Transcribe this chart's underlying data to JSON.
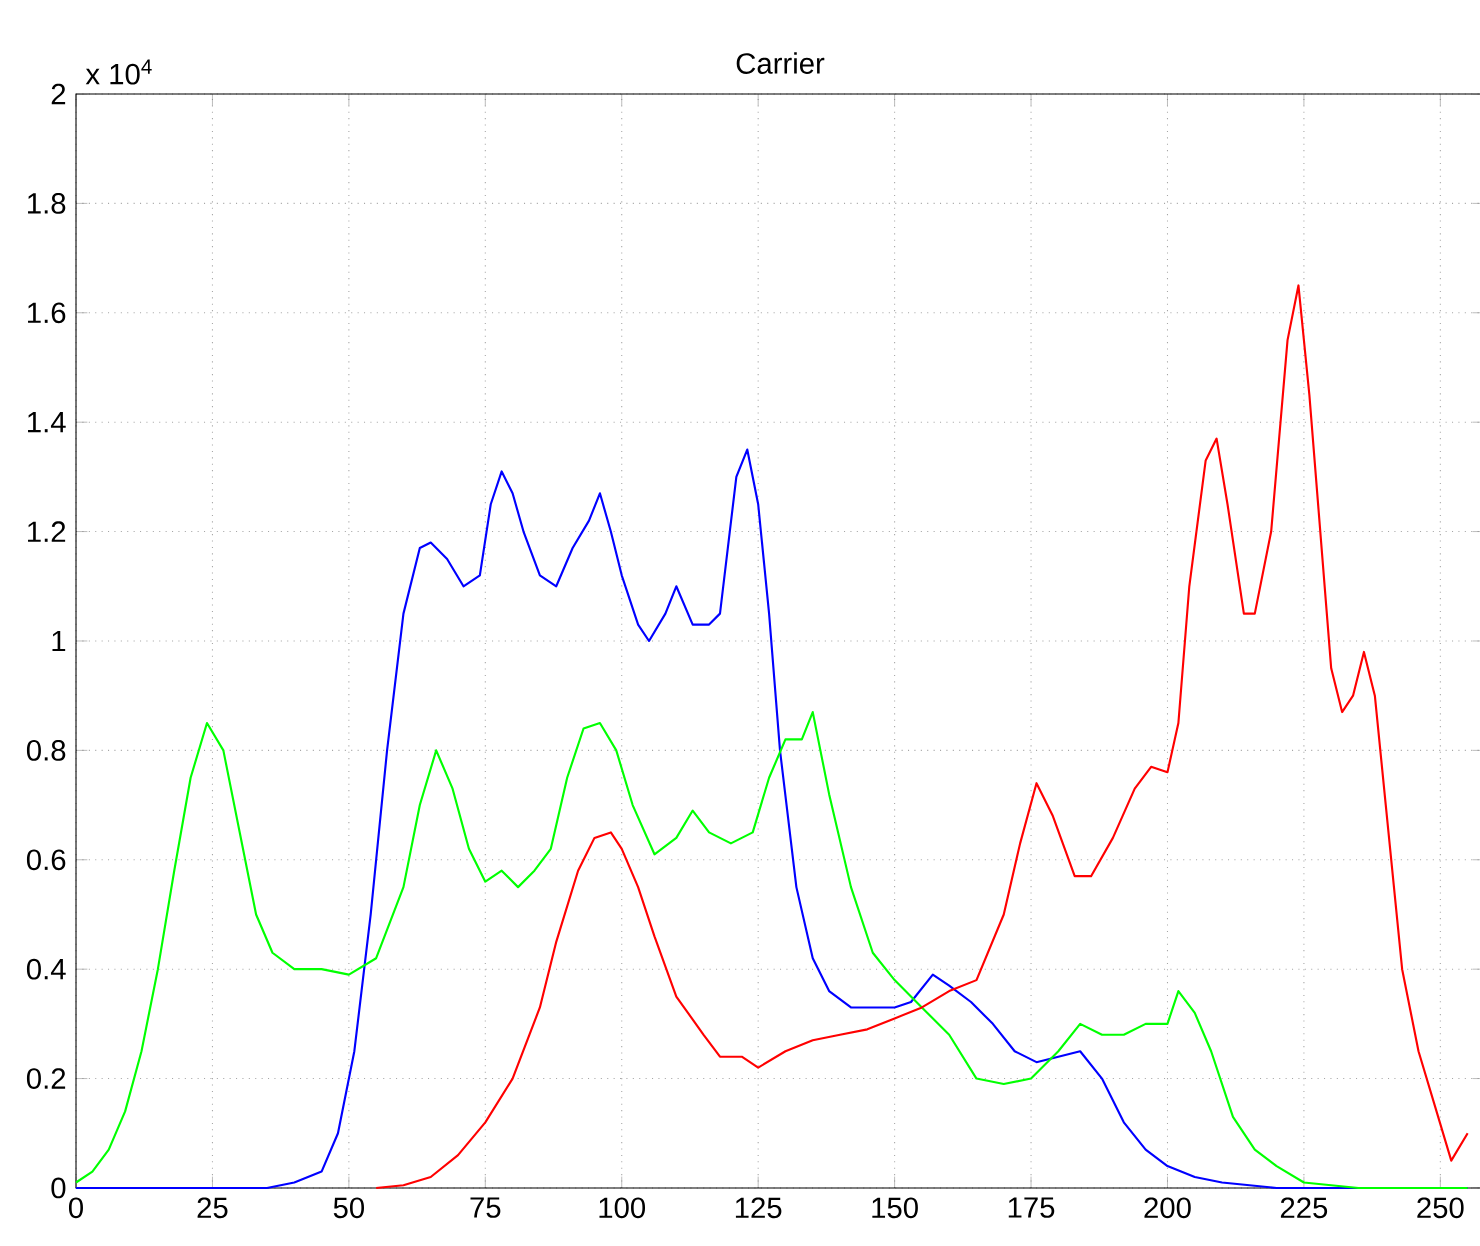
{
  "chart_data": {
    "type": "line",
    "title": "Carrier",
    "annotations": [
      "x 10$^{4}$"
    ],
    "xlim": [
      0,
      258
    ],
    "ylim": [
      0,
      2
    ],
    "xticks": [
      0,
      25,
      50,
      75,
      100,
      125,
      150,
      175,
      200,
      225,
      250
    ],
    "yticks": [
      0,
      0.2,
      0.4,
      0.6,
      0.8,
      1,
      1.2,
      1.4,
      1.6,
      1.8,
      2
    ],
    "grid": true,
    "series": [
      {
        "color": "#0000ff",
        "x": [
          0,
          20,
          35,
          40,
          45,
          48,
          51,
          54,
          57,
          60,
          63,
          65,
          68,
          71,
          74,
          76,
          78,
          80,
          82,
          85,
          88,
          91,
          94,
          96,
          98,
          100,
          103,
          105,
          108,
          110,
          113,
          116,
          118,
          121,
          123,
          125,
          127,
          129,
          132,
          135,
          138,
          142,
          146,
          150,
          153,
          157,
          160,
          164,
          168,
          172,
          176,
          180,
          184,
          188,
          192,
          196,
          200,
          205,
          210,
          220,
          255
        ],
        "values": [
          0,
          0,
          0,
          0.01,
          0.03,
          0.1,
          0.25,
          0.5,
          0.8,
          1.05,
          1.17,
          1.18,
          1.15,
          1.1,
          1.12,
          1.25,
          1.31,
          1.27,
          1.2,
          1.12,
          1.1,
          1.17,
          1.22,
          1.27,
          1.2,
          1.12,
          1.03,
          1.0,
          1.05,
          1.1,
          1.03,
          1.03,
          1.05,
          1.3,
          1.35,
          1.25,
          1.05,
          0.8,
          0.55,
          0.42,
          0.36,
          0.33,
          0.33,
          0.33,
          0.34,
          0.39,
          0.37,
          0.34,
          0.3,
          0.25,
          0.23,
          0.24,
          0.25,
          0.2,
          0.12,
          0.07,
          0.04,
          0.02,
          0.01,
          0,
          0
        ]
      },
      {
        "color": "#00ff00",
        "x": [
          0,
          3,
          6,
          9,
          12,
          15,
          18,
          21,
          24,
          27,
          30,
          33,
          36,
          40,
          45,
          50,
          55,
          60,
          63,
          66,
          69,
          72,
          75,
          78,
          81,
          84,
          87,
          90,
          93,
          96,
          99,
          102,
          106,
          110,
          113,
          116,
          120,
          124,
          127,
          130,
          133,
          135,
          138,
          142,
          146,
          150,
          155,
          160,
          165,
          170,
          175,
          180,
          184,
          188,
          192,
          196,
          200,
          202,
          205,
          208,
          212,
          216,
          220,
          225,
          235,
          255
        ],
        "values": [
          0.01,
          0.03,
          0.07,
          0.14,
          0.25,
          0.4,
          0.58,
          0.75,
          0.85,
          0.8,
          0.65,
          0.5,
          0.43,
          0.4,
          0.4,
          0.39,
          0.42,
          0.55,
          0.7,
          0.8,
          0.73,
          0.62,
          0.56,
          0.58,
          0.55,
          0.58,
          0.62,
          0.75,
          0.84,
          0.85,
          0.8,
          0.7,
          0.61,
          0.64,
          0.69,
          0.65,
          0.63,
          0.65,
          0.75,
          0.82,
          0.82,
          0.87,
          0.72,
          0.55,
          0.43,
          0.38,
          0.33,
          0.28,
          0.2,
          0.19,
          0.2,
          0.25,
          0.3,
          0.28,
          0.28,
          0.3,
          0.3,
          0.36,
          0.32,
          0.25,
          0.13,
          0.07,
          0.04,
          0.01,
          0,
          0
        ]
      },
      {
        "color": "#ff0000",
        "x": [
          55,
          60,
          65,
          70,
          75,
          80,
          85,
          88,
          92,
          95,
          98,
          100,
          103,
          106,
          110,
          115,
          118,
          122,
          125,
          130,
          135,
          140,
          145,
          150,
          155,
          160,
          165,
          170,
          173,
          176,
          179,
          183,
          186,
          190,
          194,
          197,
          200,
          202,
          204,
          207,
          209,
          211,
          214,
          216,
          219,
          222,
          224,
          226,
          228,
          230,
          232,
          234,
          236,
          238,
          240,
          243,
          246,
          249,
          252,
          255
        ],
        "values": [
          0,
          0.005,
          0.02,
          0.06,
          0.12,
          0.2,
          0.33,
          0.45,
          0.58,
          0.64,
          0.65,
          0.62,
          0.55,
          0.46,
          0.35,
          0.28,
          0.24,
          0.24,
          0.22,
          0.25,
          0.27,
          0.28,
          0.29,
          0.31,
          0.33,
          0.36,
          0.38,
          0.5,
          0.63,
          0.74,
          0.68,
          0.57,
          0.57,
          0.64,
          0.73,
          0.77,
          0.76,
          0.85,
          1.1,
          1.33,
          1.37,
          1.25,
          1.05,
          1.05,
          1.2,
          1.55,
          1.65,
          1.45,
          1.2,
          0.95,
          0.87,
          0.9,
          0.98,
          0.9,
          0.7,
          0.4,
          0.25,
          0.15,
          0.05,
          0.1
        ]
      }
    ]
  }
}
